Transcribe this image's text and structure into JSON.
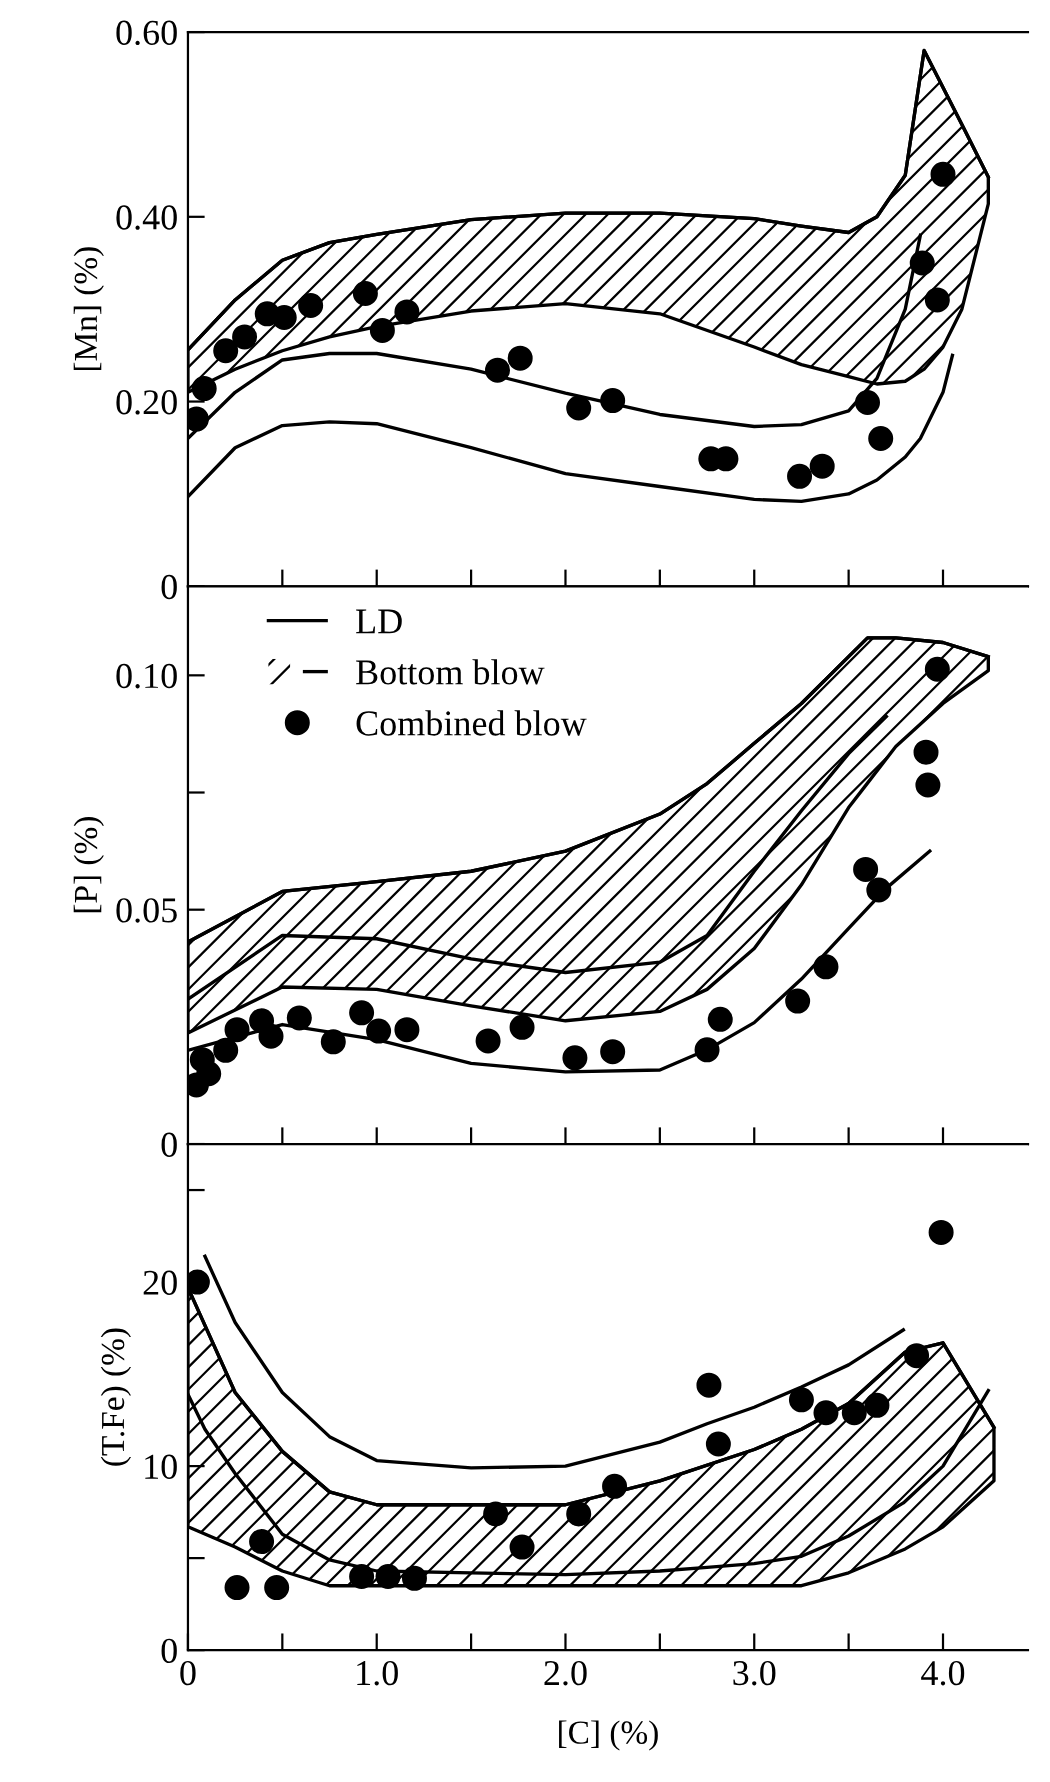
{
  "chart_data": [
    {
      "type": "line",
      "ylabel": "[Mn] (%)",
      "tick_labels": "y",
      "xlim": [
        0,
        4.45
      ],
      "ylim": [
        0,
        0.6
      ],
      "xticks": [
        {
          "value": 0.5,
          "label": null
        },
        {
          "value": 1.0,
          "label": null
        },
        {
          "value": 1.5,
          "label": null
        },
        {
          "value": 2.0,
          "label": null
        },
        {
          "value": 2.5,
          "label": null
        },
        {
          "value": 3.0,
          "label": null
        },
        {
          "value": 3.5,
          "label": null
        },
        {
          "value": 4.0,
          "label": null
        }
      ],
      "yticks": [
        0,
        {
          "value": 0.2,
          "label": "0.20"
        },
        {
          "value": 0.4,
          "label": "0.40"
        },
        {
          "value": 0.6,
          "label": "0.60"
        }
      ],
      "series": [
        {
          "color": "#000000",
          "x": [
            0,
            0.25,
            0.5,
            0.75,
            1.0,
            1.5,
            2.0,
            2.5,
            3.0,
            3.25,
            3.5,
            3.65,
            3.8,
            3.88
          ],
          "values": [
            0.16,
            0.21,
            0.245,
            0.252,
            0.252,
            0.235,
            0.209,
            0.186,
            0.173,
            0.175,
            0.19,
            0.225,
            0.3,
            0.38
          ]
        },
        {
          "color": "#000000",
          "x": [
            0,
            0.25,
            0.5,
            0.75,
            1.0,
            1.5,
            2.0,
            2.5,
            3.0,
            3.25,
            3.5,
            3.65,
            3.8,
            3.88,
            4.0,
            4.05
          ],
          "values": [
            0.097,
            0.15,
            0.174,
            0.178,
            0.176,
            0.15,
            0.122,
            0.108,
            0.094,
            0.092,
            0.1,
            0.115,
            0.14,
            0.16,
            0.21,
            0.25
          ]
        },
        {
          "color": "#000000",
          "x": [
            0,
            0.25,
            0.5,
            0.75,
            1.0,
            1.5,
            2.0,
            2.5,
            3.0,
            3.25,
            3.5,
            3.65,
            3.8,
            3.9,
            4.0,
            4.1,
            4.24
          ],
          "values": [
            0.256,
            0.31,
            0.353,
            0.372,
            0.381,
            0.397,
            0.404,
            0.404,
            0.398,
            0.39,
            0.383,
            0.4,
            0.445,
            0.58,
            0.54,
            0.5,
            0.443
          ],
          "upper": [
            0.256,
            0.31,
            0.353,
            0.372,
            0.381,
            0.397,
            0.404,
            0.404,
            0.398,
            0.39,
            0.383,
            0.4,
            0.445,
            0.58,
            0.54,
            0.5,
            0.443
          ],
          "lower": [
            0.21,
            0.235,
            0.255,
            0.27,
            0.281,
            0.298,
            0.306,
            0.295,
            0.259,
            0.24,
            0.227,
            0.219,
            0.222,
            0.235,
            0.259,
            0.3,
            0.414
          ]
        },
        {
          "type": "scatter",
          "marker": "circle",
          "color": "#000000",
          "x": [
            0.045,
            0.086,
            0.2,
            0.3,
            0.42,
            0.51,
            0.65,
            0.94,
            1.03,
            1.16,
            1.64,
            1.76,
            2.07,
            2.25,
            2.77,
            2.85,
            3.24,
            3.36,
            3.6,
            3.67,
            3.89,
            3.97,
            4.0
          ],
          "values": [
            0.181,
            0.214,
            0.255,
            0.27,
            0.295,
            0.291,
            0.304,
            0.317,
            0.277,
            0.297,
            0.234,
            0.247,
            0.193,
            0.201,
            0.138,
            0.138,
            0.119,
            0.13,
            0.199,
            0.16,
            0.35,
            0.31,
            0.446
          ]
        }
      ]
    },
    {
      "type": "line",
      "ylabel": "[P] (%)",
      "tick_labels": "y",
      "legend": "top left",
      "xlim": [
        0,
        4.45
      ],
      "ylim": [
        0,
        0.119
      ],
      "xticks": [
        {
          "value": 0.5,
          "label": null
        },
        {
          "value": 1.0,
          "label": null
        },
        {
          "value": 1.5,
          "label": null
        },
        {
          "value": 2.0,
          "label": null
        },
        {
          "value": 2.5,
          "label": null
        },
        {
          "value": 3.0,
          "label": null
        },
        {
          "value": 3.5,
          "label": null
        },
        {
          "value": 4.0,
          "label": null
        }
      ],
      "yticks": [
        0,
        {
          "value": 0.05,
          "label": "0.05"
        },
        {
          "value": 0.075,
          "label": null
        },
        {
          "value": 0.1,
          "label": "0.10"
        }
      ],
      "series": [
        {
          "name": "LD",
          "color": "#000000",
          "x": [
            0,
            0.5,
            1.0,
            1.5,
            2.0,
            2.5,
            2.75,
            3.0,
            3.25,
            3.5,
            3.7
          ],
          "values": [
            0.0309,
            0.0445,
            0.0438,
            0.0395,
            0.0366,
            0.0388,
            0.0445,
            0.0582,
            0.0711,
            0.0833,
            0.0912
          ]
        },
        {
          "color": "#000000",
          "x": [
            0,
            0.5,
            1.0,
            1.5,
            2.0,
            2.5,
            2.75,
            3.0,
            3.25,
            3.5,
            3.7,
            3.93
          ],
          "values": [
            0.02,
            0.0255,
            0.0223,
            0.0172,
            0.0154,
            0.0158,
            0.0201,
            0.0259,
            0.0352,
            0.046,
            0.0546,
            0.0625
          ]
        },
        {
          "name": "Bottom blow",
          "color": "#000000",
          "x": [
            0,
            0.5,
            1.0,
            1.5,
            2.0,
            2.5,
            2.75,
            3.0,
            3.25,
            3.5,
            3.6,
            3.75,
            4.0,
            4.24
          ],
          "values": [
            0.0431,
            0.0539,
            0.056,
            0.0582,
            0.0625,
            0.0704,
            0.0769,
            0.0855,
            0.094,
            0.104,
            0.108,
            0.108,
            0.107,
            0.104
          ],
          "upper": [
            0.0431,
            0.0539,
            0.056,
            0.0582,
            0.0625,
            0.0704,
            0.0769,
            0.0855,
            0.094,
            0.104,
            0.108,
            0.108,
            0.107,
            0.104
          ],
          "lower": [
            0.0237,
            0.0335,
            0.033,
            0.0295,
            0.0263,
            0.0283,
            0.033,
            0.0417,
            0.0553,
            0.0718,
            0.077,
            0.0848,
            0.094,
            0.101
          ]
        },
        {
          "name": "Combined blow",
          "type": "scatter",
          "marker": "circle",
          "color": "#000000",
          "x": [
            0.045,
            0.076,
            0.11,
            0.2,
            0.26,
            0.39,
            0.44,
            0.59,
            0.77,
            0.92,
            1.01,
            1.16,
            1.59,
            1.77,
            2.05,
            2.25,
            2.75,
            2.82,
            3.23,
            3.38,
            3.59,
            3.66,
            3.91,
            3.92,
            3.97
          ],
          "values": [
            0.0126,
            0.018,
            0.015,
            0.02,
            0.0244,
            0.0263,
            0.023,
            0.0269,
            0.0218,
            0.028,
            0.0241,
            0.0244,
            0.022,
            0.0249,
            0.0184,
            0.0197,
            0.0201,
            0.0266,
            0.0305,
            0.0378,
            0.0586,
            0.0542,
            0.0836,
            0.0766,
            0.1013
          ]
        }
      ]
    },
    {
      "type": "line",
      "ylabel": "(T.Fe) (%)",
      "xlabel": "[C] (%)",
      "xlim": [
        0,
        4.45
      ],
      "ylim": [
        0,
        27.5
      ],
      "xticks": [
        0,
        {
          "value": 0.5,
          "label": null
        },
        {
          "value": 1.0,
          "label": "1.0"
        },
        {
          "value": 1.5,
          "label": null
        },
        {
          "value": 2.0,
          "label": "2.0"
        },
        {
          "value": 2.5,
          "label": null
        },
        {
          "value": 3.0,
          "label": "3.0"
        },
        {
          "value": 3.5,
          "label": null
        },
        {
          "value": 4.0,
          "label": "4.0"
        }
      ],
      "yticks": [
        0,
        {
          "value": 5,
          "label": null
        },
        10,
        20,
        {
          "value": 25,
          "label": null
        }
      ],
      "series": [
        {
          "color": "#000000",
          "x": [
            0.09,
            0.25,
            0.5,
            0.75,
            1.0,
            1.5,
            2.0,
            2.5,
            2.75,
            3.0,
            3.25,
            3.5,
            3.79
          ],
          "values": [
            21.4,
            17.8,
            14.0,
            11.6,
            10.3,
            9.9,
            10.0,
            11.3,
            12.3,
            13.2,
            14.3,
            15.5,
            17.4
          ]
        },
        {
          "color": "#000000",
          "x": [
            0,
            0.09,
            0.25,
            0.5,
            0.75,
            1.0,
            1.5,
            2.0,
            2.5,
            2.75,
            3.0,
            3.25,
            3.5,
            3.79,
            4.0,
            4.24
          ],
          "values": [
            13.9,
            12.0,
            9.6,
            6.3,
            4.9,
            4.3,
            4.2,
            4.1,
            4.3,
            4.5,
            4.7,
            5.1,
            6.2,
            8.0,
            10.0,
            14.1
          ]
        },
        {
          "color": "#000000",
          "x": [
            0,
            0.25,
            0.5,
            0.75,
            1.0,
            1.5,
            2.0,
            2.5,
            3.0,
            3.25,
            3.5,
            3.8,
            4.0,
            4.27
          ],
          "values": [
            19.7,
            14.0,
            10.8,
            8.6,
            7.9,
            7.9,
            7.9,
            9.2,
            10.9,
            12.0,
            13.4,
            16.2,
            16.7,
            12.1
          ],
          "upper": [
            19.7,
            14.0,
            10.8,
            8.6,
            7.9,
            7.9,
            7.9,
            9.2,
            10.9,
            12.0,
            13.4,
            16.2,
            16.7,
            12.1
          ],
          "lower": [
            6.7,
            5.6,
            4.3,
            3.5,
            3.5,
            3.5,
            3.5,
            3.5,
            3.5,
            3.5,
            4.2,
            5.5,
            6.7,
            9.2
          ]
        },
        {
          "type": "scatter",
          "marker": "circle",
          "color": "#000000",
          "x": [
            0.05,
            0.26,
            0.39,
            0.47,
            0.92,
            1.06,
            1.2,
            1.63,
            1.77,
            2.07,
            2.26,
            2.76,
            2.81,
            3.25,
            3.38,
            3.53,
            3.65,
            3.86,
            3.99
          ],
          "values": [
            20.0,
            3.4,
            5.9,
            3.4,
            4.0,
            4.0,
            3.9,
            7.4,
            5.6,
            7.4,
            8.9,
            14.4,
            11.2,
            13.6,
            12.9,
            12.9,
            13.3,
            16.0,
            22.7
          ]
        }
      ]
    }
  ]
}
